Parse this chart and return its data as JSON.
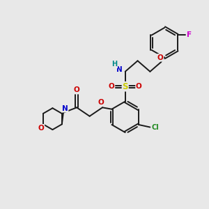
{
  "bg_color": "#e8e8e8",
  "bond_color": "#1a1a1a",
  "bond_width": 1.4,
  "figsize": [
    3.0,
    3.0
  ],
  "dpi": 100,
  "atom_colors": {
    "N": "#0000cc",
    "O": "#cc0000",
    "S": "#cccc00",
    "Cl": "#228b22",
    "F": "#cc00cc",
    "H": "#008888",
    "C": "#1a1a1a"
  }
}
